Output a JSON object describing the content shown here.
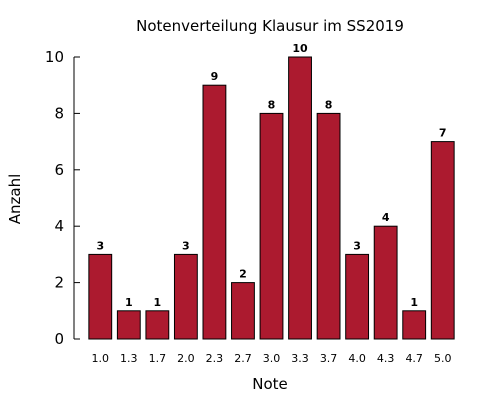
{
  "chart_data": {
    "type": "bar",
    "title": "Notenverteilung Klausur im SS2019",
    "xlabel": "Note",
    "ylabel": "Anzahl",
    "categories": [
      "1.0",
      "1.3",
      "1.7",
      "2.0",
      "2.3",
      "2.7",
      "3.0",
      "3.3",
      "3.7",
      "4.0",
      "4.3",
      "4.7",
      "5.0"
    ],
    "values": [
      3,
      1,
      1,
      3,
      9,
      2,
      8,
      10,
      8,
      3,
      4,
      1,
      7
    ],
    "ylim": [
      0,
      10
    ],
    "yticks": [
      0,
      2,
      4,
      6,
      8,
      10
    ],
    "bar_color": "#ac1a2f",
    "bar_edge_color": "#000000",
    "grid": false,
    "legend": false
  }
}
